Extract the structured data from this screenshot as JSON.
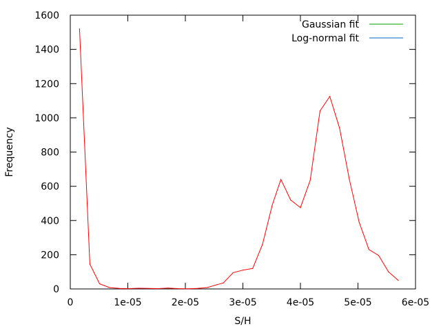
{
  "chart_data": {
    "type": "line",
    "xlabel": "S/H",
    "ylabel": "Frequency",
    "xlim": [
      0,
      6e-05
    ],
    "ylim": [
      0,
      1600
    ],
    "x_ticks": [
      0,
      1e-05,
      2e-05,
      3e-05,
      4e-05,
      5e-05,
      6e-05
    ],
    "x_tick_labels": [
      "0",
      "1e-05",
      "2e-05",
      "3e-05",
      "4e-05",
      "5e-05",
      "6e-05"
    ],
    "y_ticks": [
      0,
      200,
      400,
      600,
      800,
      1000,
      1200,
      1400,
      1600
    ],
    "y_tick_labels": [
      "0",
      "200",
      "400",
      "600",
      "800",
      "1000",
      "1200",
      "1400",
      "1600"
    ],
    "grid": false,
    "legend_position": "top-right",
    "legend": [
      {
        "name": "Gaussian fit",
        "color": "#00a000"
      },
      {
        "name": "Log-normal fit",
        "color": "#0060c0"
      }
    ],
    "series": [
      {
        "color": "#ff0000",
        "x": [
          1.6e-06,
          3.4e-06,
          5.1e-06,
          6.8e-06,
          8.5e-06,
          1.02e-05,
          1.19e-05,
          1.36e-05,
          1.53e-05,
          1.7e-05,
          1.87e-05,
          2.04e-05,
          2.21e-05,
          2.38e-05,
          2.55e-05,
          2.66e-05,
          2.83e-05,
          3e-05,
          3.17e-05,
          3.34e-05,
          3.51e-05,
          3.66e-05,
          3.83e-05,
          4e-05,
          4.17e-05,
          4.34e-05,
          4.51e-05,
          4.68e-05,
          4.85e-05,
          5.02e-05,
          5.19e-05,
          5.36e-05,
          5.53e-05,
          5.7e-05
        ],
        "values": [
          1520,
          145,
          30,
          8,
          3,
          2,
          4,
          3,
          2,
          5,
          2,
          1,
          3,
          8,
          25,
          35,
          95,
          110,
          120,
          260,
          490,
          640,
          520,
          475,
          635,
          1040,
          1125,
          940,
          640,
          390,
          230,
          195,
          100,
          50
        ]
      }
    ]
  }
}
